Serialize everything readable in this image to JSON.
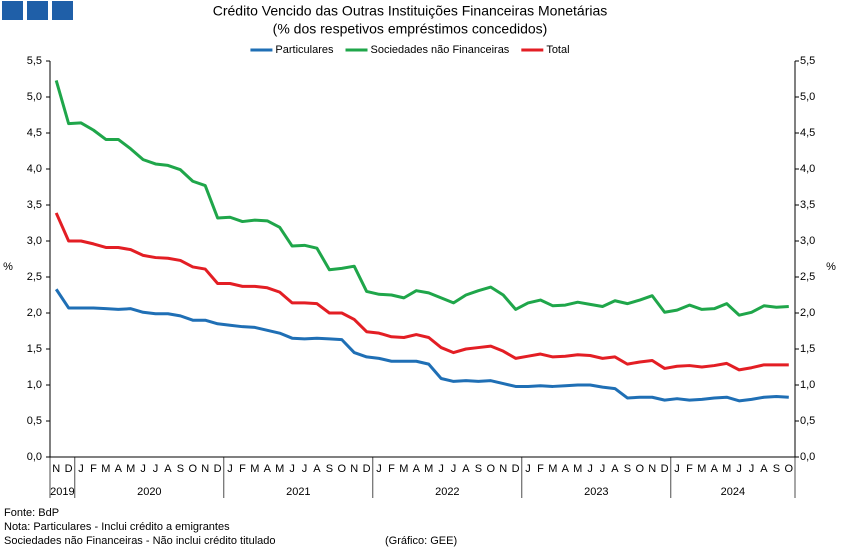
{
  "chart_data": {
    "type": "line",
    "title": "Crédito Vencido das Outras Instituições Financeiras Monetárias",
    "subtitle": "(% dos respetivos empréstimos concedidos)",
    "ylabel": "%",
    "y2label": "%",
    "groups": [
      {
        "label": "2019",
        "months": [
          "N",
          "D"
        ]
      },
      {
        "label": "2020",
        "months": [
          "J",
          "F",
          "M",
          "A",
          "M",
          "J",
          "J",
          "A",
          "S",
          "O",
          "N",
          "D"
        ]
      },
      {
        "label": "2021",
        "months": [
          "J",
          "F",
          "M",
          "A",
          "M",
          "J",
          "J",
          "A",
          "S",
          "O",
          "N",
          "D"
        ]
      },
      {
        "label": "2022",
        "months": [
          "J",
          "F",
          "M",
          "A",
          "M",
          "J",
          "J",
          "A",
          "S",
          "O",
          "N",
          "D"
        ]
      },
      {
        "label": "2023",
        "months": [
          "J",
          "F",
          "M",
          "A",
          "M",
          "J",
          "J",
          "A",
          "S",
          "O",
          "N",
          "D"
        ]
      },
      {
        "label": "2024",
        "months": [
          "J",
          "F",
          "M",
          "A",
          "M",
          "J",
          "J",
          "A",
          "S",
          "O"
        ]
      }
    ],
    "series": [
      {
        "name": "Particulares",
        "color": "#1f6fb5",
        "values": [
          2.33,
          2.07,
          2.07,
          2.07,
          2.06,
          2.05,
          2.06,
          2.01,
          1.99,
          1.99,
          1.96,
          1.9,
          1.9,
          1.85,
          1.83,
          1.81,
          1.8,
          1.76,
          1.72,
          1.65,
          1.64,
          1.65,
          1.64,
          1.63,
          1.45,
          1.39,
          1.37,
          1.33,
          1.33,
          1.33,
          1.29,
          1.09,
          1.05,
          1.06,
          1.05,
          1.06,
          1.02,
          0.98,
          0.98,
          0.99,
          0.98,
          0.99,
          1.0,
          1.0,
          0.97,
          0.95,
          0.82,
          0.83,
          0.83,
          0.79,
          0.81,
          0.79,
          0.8,
          0.82,
          0.83,
          0.78,
          0.8,
          0.83,
          0.84,
          0.83
        ]
      },
      {
        "name": "Sociedades não Financeiras",
        "color": "#1fa64a",
        "values": [
          5.23,
          4.63,
          4.64,
          4.54,
          4.41,
          4.41,
          4.28,
          4.13,
          4.07,
          4.05,
          3.99,
          3.83,
          3.77,
          3.32,
          3.33,
          3.27,
          3.29,
          3.28,
          3.19,
          2.93,
          2.94,
          2.9,
          2.6,
          2.62,
          2.65,
          2.3,
          2.26,
          2.25,
          2.21,
          2.31,
          2.28,
          2.21,
          2.14,
          2.25,
          2.31,
          2.36,
          2.25,
          2.05,
          2.14,
          2.18,
          2.1,
          2.11,
          2.15,
          2.12,
          2.09,
          2.17,
          2.13,
          2.18,
          2.24,
          2.01,
          2.04,
          2.11,
          2.05,
          2.06,
          2.13,
          1.97,
          2.01,
          2.1,
          2.08,
          2.09
        ]
      },
      {
        "name": "Total",
        "color": "#e31e24",
        "values": [
          3.39,
          3.0,
          3.0,
          2.96,
          2.91,
          2.91,
          2.88,
          2.8,
          2.77,
          2.76,
          2.73,
          2.64,
          2.61,
          2.41,
          2.41,
          2.37,
          2.37,
          2.35,
          2.29,
          2.14,
          2.14,
          2.13,
          2.0,
          2.0,
          1.91,
          1.74,
          1.72,
          1.67,
          1.66,
          1.7,
          1.66,
          1.52,
          1.45,
          1.5,
          1.52,
          1.54,
          1.47,
          1.37,
          1.4,
          1.43,
          1.39,
          1.4,
          1.42,
          1.41,
          1.37,
          1.39,
          1.29,
          1.32,
          1.34,
          1.23,
          1.26,
          1.27,
          1.25,
          1.27,
          1.3,
          1.21,
          1.24,
          1.28,
          1.28,
          1.28
        ]
      }
    ],
    "ylim": [
      0,
      5.5
    ],
    "yticks": [
      {
        "value": 0,
        "label": "0,0"
      },
      {
        "value": 0.5,
        "label": "0,5"
      },
      {
        "value": 1,
        "label": "1,0"
      },
      {
        "value": 1.5,
        "label": "1,5"
      },
      {
        "value": 2,
        "label": "2,0"
      },
      {
        "value": 2.5,
        "label": "2,5"
      },
      {
        "value": 3,
        "label": "3,0"
      },
      {
        "value": 3.5,
        "label": "3,5"
      },
      {
        "value": 4,
        "label": "4,0"
      },
      {
        "value": 4.5,
        "label": "4,5"
      },
      {
        "value": 5,
        "label": "5,0"
      },
      {
        "value": 5.5,
        "label": "5,5"
      }
    ],
    "y2lim": [
      0,
      5.5
    ],
    "y2ticks": [
      {
        "value": 0,
        "label": "0,0"
      },
      {
        "value": 0.5,
        "label": "0,5"
      },
      {
        "value": 1,
        "label": "1,0"
      },
      {
        "value": 1.5,
        "label": "1,5"
      },
      {
        "value": 2,
        "label": "2,0"
      },
      {
        "value": 2.5,
        "label": "2,5"
      },
      {
        "value": 3,
        "label": "3,0"
      },
      {
        "value": 3.5,
        "label": "3,5"
      },
      {
        "value": 4,
        "label": "4,0"
      },
      {
        "value": 4.5,
        "label": "4,5"
      },
      {
        "value": 5,
        "label": "5,0"
      },
      {
        "value": 5.5,
        "label": "5,5"
      }
    ],
    "grid": false,
    "notes": [
      "Fonte: BdP",
      "Nota: Particulares - Inclui crédito a emigrantes",
      "Sociedades não Financeiras - Não inclui crédito titulado"
    ],
    "credit": "(Gráfico: GEE)"
  }
}
